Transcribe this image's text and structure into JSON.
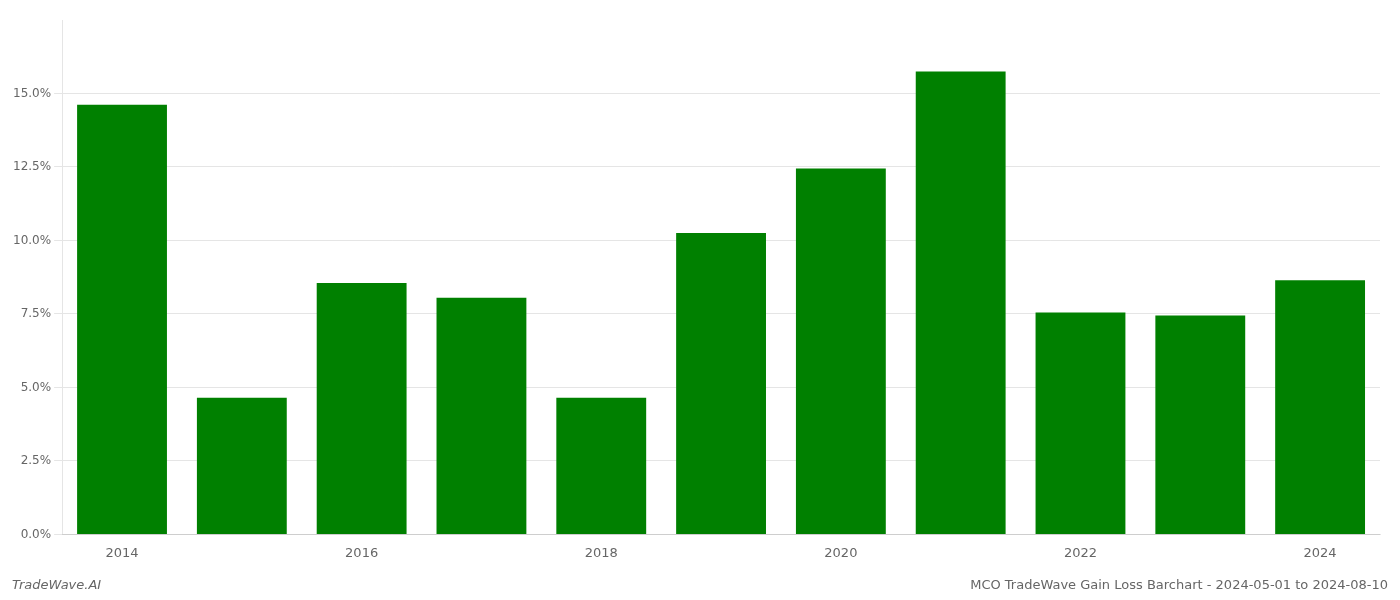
{
  "chart_data": {
    "type": "bar",
    "title": "MCO TradeWave Gain Loss Barchart - 2024-05-01 to 2024-08-10",
    "annotations": [
      "TradeWave.AI"
    ],
    "categories": [
      "2014",
      null,
      "2016",
      null,
      "2018",
      null,
      "2020",
      null,
      "2022",
      null,
      "2024"
    ],
    "values": [
      0.1462,
      0.0465,
      0.0855,
      0.0805,
      0.0465,
      0.1025,
      0.1245,
      0.1575,
      0.0755,
      0.0745,
      0.0865
    ],
    "color": "#008000",
    "ylim": [
      0,
      0.175
    ],
    "yticks": [
      {
        "value": 0.0,
        "label": "0.0%"
      },
      {
        "value": 0.025,
        "label": "2.5%"
      },
      {
        "value": 0.05,
        "label": "5.0%"
      },
      {
        "value": 0.075,
        "label": "7.5%"
      },
      {
        "value": 0.1,
        "label": "10.0%"
      },
      {
        "value": 0.125,
        "label": "12.5%"
      },
      {
        "value": 0.15,
        "label": "15.0%"
      }
    ],
    "grid": true
  }
}
